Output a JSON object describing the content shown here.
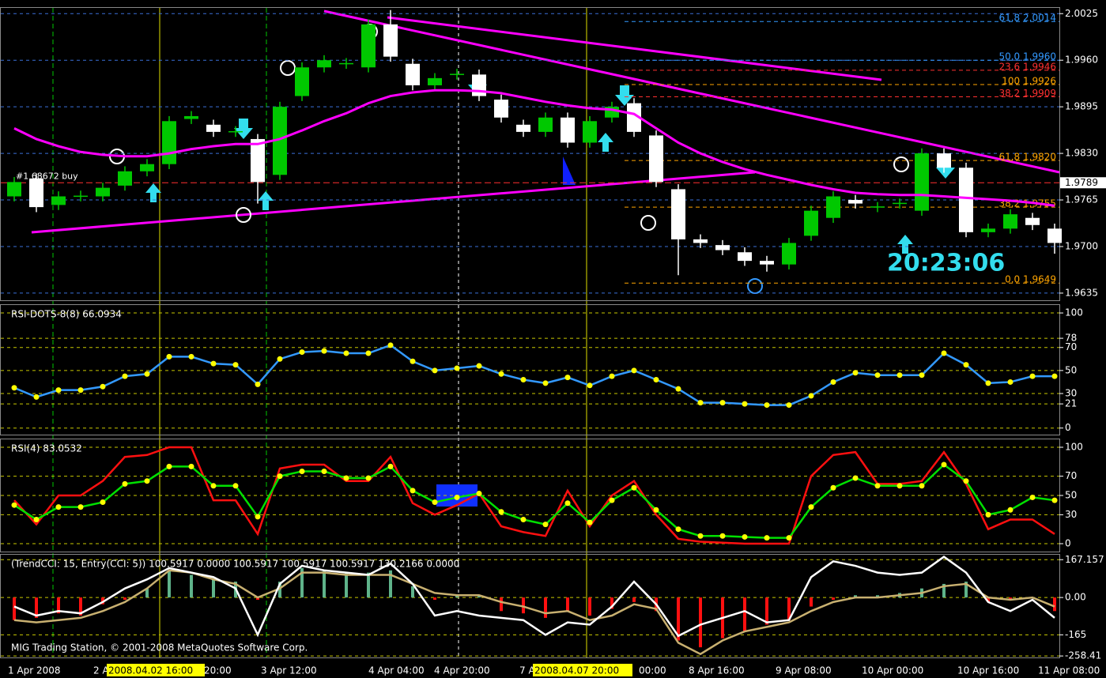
{
  "chart_data": [
    {
      "type": "candlestick",
      "ylim": [
        1.9625,
        2.0033
      ],
      "yticks": [
        2.0025,
        {
          "value": 1.996,
          "label": "1.9960"
        },
        1.9895,
        {
          "value": 1.983,
          "label": "1.9830"
        },
        1.9765,
        {
          "value": 1.97,
          "label": "1.9700"
        },
        1.9635
      ],
      "grid": true,
      "grid_color": "#3a6fd8",
      "up_color": "#00c800",
      "down_color": "#ffffff",
      "open": [
        1.977,
        1.9795,
        1.9758,
        1.977,
        1.977,
        1.9785,
        1.9805,
        1.9815,
        1.9878,
        1.987,
        1.986,
        1.985,
        1.98,
        1.991,
        1.995,
        1.9955,
        1.995,
        2.001,
        1.9955,
        1.9925,
        1.994,
        1.994,
        1.9905,
        1.987,
        1.986,
        1.988,
        1.9845,
        1.988,
        1.99,
        1.9855,
        1.978,
        1.971,
        1.9702,
        1.9692,
        1.968,
        1.9675,
        1.9715,
        1.974,
        1.9765,
        1.9755,
        1.976,
        1.975,
        1.983,
        1.981,
        1.972,
        1.9725,
        1.974,
        1.9725
      ],
      "high": [
        1.9797,
        1.9802,
        1.9777,
        1.9778,
        1.9789,
        1.9812,
        1.9822,
        1.9882,
        1.9889,
        1.9877,
        1.9868,
        1.9857,
        1.9902,
        1.9957,
        1.9967,
        1.9963,
        2.0017,
        2.003,
        1.9962,
        1.9942,
        1.9948,
        1.9947,
        1.9912,
        1.9877,
        1.9887,
        1.9887,
        1.9882,
        1.9902,
        1.9907,
        1.9862,
        1.9787,
        1.9717,
        1.9709,
        1.9699,
        1.9687,
        1.9712,
        1.9757,
        1.9777,
        1.9772,
        1.9762,
        1.9767,
        1.9837,
        1.9837,
        1.9817,
        1.9732,
        1.9752,
        1.9747,
        1.9732
      ],
      "low": [
        1.9763,
        1.9748,
        1.9751,
        1.9763,
        1.9763,
        1.9778,
        1.9798,
        1.9808,
        1.9871,
        1.9853,
        1.9853,
        1.976,
        1.9793,
        1.9903,
        1.9943,
        1.9948,
        1.9943,
        1.9958,
        1.9918,
        1.9918,
        1.9933,
        1.9903,
        1.9873,
        1.9853,
        1.9853,
        1.9838,
        1.9838,
        1.9873,
        1.9853,
        1.9783,
        1.966,
        1.9698,
        1.9688,
        1.9673,
        1.9665,
        1.9668,
        1.9708,
        1.9733,
        1.9753,
        1.9748,
        1.9753,
        1.9743,
        1.9803,
        1.9713,
        1.9713,
        1.9718,
        1.9723,
        1.969
      ],
      "close": [
        1.979,
        1.9755,
        1.977,
        1.9771,
        1.9782,
        1.9805,
        1.9815,
        1.9875,
        1.9882,
        1.986,
        1.9861,
        1.979,
        1.9895,
        1.995,
        1.996,
        1.9956,
        2.001,
        1.9965,
        1.9925,
        1.9935,
        1.9941,
        1.991,
        1.988,
        1.986,
        1.988,
        1.9845,
        1.9875,
        1.9895,
        1.986,
        1.979,
        1.971,
        1.9705,
        1.9695,
        1.968,
        1.9675,
        1.9705,
        1.975,
        1.977,
        1.976,
        1.9756,
        1.9761,
        1.983,
        1.981,
        1.972,
        1.9725,
        1.9745,
        1.973,
        1.9705
      ],
      "series": [
        {
          "color": "#ff00ff",
          "values": [
            1.9865,
            1.985,
            1.984,
            1.9832,
            1.9828,
            1.9826,
            1.9826,
            1.983,
            1.9836,
            1.984,
            1.9843,
            1.9843,
            1.985,
            1.9862,
            1.9875,
            1.9886,
            1.99,
            1.991,
            1.9915,
            1.9918,
            1.9918,
            1.9917,
            1.9914,
            1.9908,
            1.9902,
            1.9897,
            1.9893,
            1.9891,
            1.9885,
            1.9865,
            1.9845,
            1.983,
            1.9818,
            1.9808,
            1.98,
            1.9793,
            1.9786,
            1.978,
            1.9775,
            1.9773,
            1.9772,
            1.9772,
            1.977,
            1.9768,
            1.9766,
            1.9764,
            1.9761,
            1.9757
          ]
        }
      ],
      "current_price": 1.9789,
      "order_label": "#1 68672 buy",
      "countdown": "20:23:06",
      "fib_levels": [
        {
          "text": "61.8 2.0014",
          "value": 2.0014,
          "color": "#3399ff"
        },
        {
          "text": "50.0 1.9960",
          "value": 1.996,
          "color": "#3399ff"
        },
        {
          "text": "23.6 1.9946",
          "value": 1.9946,
          "color": "#ff3030"
        },
        {
          "text": "100 1.9926",
          "value": 1.9926,
          "color": "#ffa500"
        },
        {
          "text": "38.2 1.9909",
          "value": 1.9909,
          "color": "#ff3030"
        },
        {
          "text": "61.8 1.9820",
          "value": 1.982,
          "color": "#ffa500"
        },
        {
          "text": "38.2 1.9755",
          "value": 1.9755,
          "color": "#ffa500"
        },
        {
          "text": "0.0 1.9649",
          "value": 1.9649,
          "color": "#ffa500"
        }
      ]
    },
    {
      "type": "line",
      "title": "RSI-DOTS-8(8) 66.0934",
      "ylim": [
        -5.7,
        106.9
      ],
      "yticks": [
        100,
        78,
        70,
        50,
        30,
        21,
        0
      ],
      "grid": true,
      "grid_color": "#c8c800",
      "series": [
        {
          "color": "#3399ff",
          "marker_color": "#ffff00",
          "values": [
            35,
            27,
            33,
            33,
            36,
            45,
            47,
            62,
            62,
            56,
            55,
            38,
            60,
            66,
            67,
            65,
            65,
            72,
            58,
            50,
            52,
            54,
            47,
            42,
            39,
            44,
            37,
            45,
            50,
            42,
            34,
            22,
            22,
            21,
            20,
            20,
            28,
            40,
            48,
            46,
            46,
            46,
            65,
            55,
            39,
            40,
            45,
            45
          ]
        }
      ]
    },
    {
      "type": "line",
      "title": "RSI(4) 83.0532",
      "ylim": [
        -8.2,
        108.2
      ],
      "yticks": [
        100,
        70,
        50,
        30,
        0
      ],
      "grid": true,
      "grid_color": "#c8c800",
      "series": [
        {
          "color": "#ff1010",
          "values": [
            45,
            20,
            50,
            50,
            65,
            90,
            92,
            100,
            100,
            45,
            45,
            10,
            78,
            82,
            82,
            65,
            65,
            90,
            42,
            30,
            40,
            52,
            18,
            12,
            8,
            55,
            18,
            50,
            65,
            30,
            5,
            2,
            1,
            0,
            0,
            0,
            70,
            92,
            95,
            62,
            62,
            65,
            95,
            62,
            15,
            25,
            25,
            10
          ]
        },
        {
          "color": "#00e000",
          "marker_color": "#ffff00",
          "values": [
            40,
            25,
            38,
            38,
            43,
            62,
            65,
            80,
            80,
            60,
            60,
            28,
            70,
            75,
            75,
            68,
            68,
            80,
            55,
            43,
            48,
            52,
            33,
            25,
            20,
            42,
            22,
            45,
            58,
            35,
            15,
            8,
            8,
            7,
            6,
            6,
            38,
            58,
            68,
            60,
            60,
            60,
            82,
            65,
            30,
            35,
            48,
            45
          ]
        }
      ]
    },
    {
      "type": "line",
      "title": "(TrendCCI: 15, Entry(CCI: 5)) 100.5917 0.0000 100.5917 100.5917 100.5917 130.2166 0.0000",
      "ylim": [
        -265,
        189
      ],
      "yticks": [
        167.157,
        {
          "value": 0,
          "label": "0.00"
        },
        -165,
        -258.41
      ],
      "grid": true,
      "grid_color": "#c8c800",
      "bars": {
        "up_color": "#5fb38a",
        "down_color": "#ff1010",
        "values": [
          -100,
          -90,
          -70,
          -80,
          -30,
          -10,
          40,
          120,
          100,
          80,
          70,
          -10,
          70,
          130,
          120,
          110,
          110,
          120,
          50,
          -10,
          10,
          10,
          -60,
          -70,
          -90,
          -60,
          -80,
          -50,
          -20,
          -60,
          -190,
          -220,
          -180,
          -150,
          -120,
          -100,
          -40,
          -10,
          10,
          10,
          20,
          40,
          60,
          70,
          -20,
          -10,
          0,
          -60
        ]
      },
      "series": [
        {
          "color": "#c8b070",
          "values": [
            -100,
            -110,
            -100,
            -90,
            -60,
            -20,
            40,
            120,
            110,
            80,
            60,
            0,
            40,
            110,
            110,
            100,
            100,
            100,
            60,
            20,
            10,
            10,
            -20,
            -40,
            -70,
            -60,
            -100,
            -80,
            -30,
            -50,
            -200,
            -250,
            -190,
            -150,
            -130,
            -110,
            -60,
            -20,
            0,
            0,
            10,
            20,
            50,
            60,
            0,
            -10,
            0,
            -40
          ]
        },
        {
          "color": "#ffffff",
          "values": [
            -40,
            -80,
            -60,
            -70,
            -20,
            40,
            80,
            130,
            110,
            90,
            40,
            -165,
            60,
            140,
            120,
            110,
            100,
            150,
            60,
            -80,
            -60,
            -80,
            -90,
            -100,
            -165,
            -110,
            -120,
            -40,
            70,
            -30,
            -170,
            -120,
            -90,
            -60,
            -110,
            -100,
            90,
            160,
            140,
            110,
            100,
            110,
            180,
            110,
            -20,
            -60,
            -10,
            -90
          ]
        }
      ],
      "footer": "MIG Trading Station, © 2001-2008 MetaQuotes Software Corp."
    }
  ],
  "time_axis": [
    "1 Apr 2008",
    "2 A",
    "2008.04.02 16:00",
    "20:00",
    "3 Apr 12:00",
    "4 Apr 04:00",
    "4 Apr 20:00",
    "7 A",
    "2008.04.07 20:00",
    "00:00",
    "8 Apr 16:00",
    "9 Apr 08:00",
    "10 Apr 00:00",
    "10 Apr 16:00",
    "11 Apr 08:00"
  ]
}
